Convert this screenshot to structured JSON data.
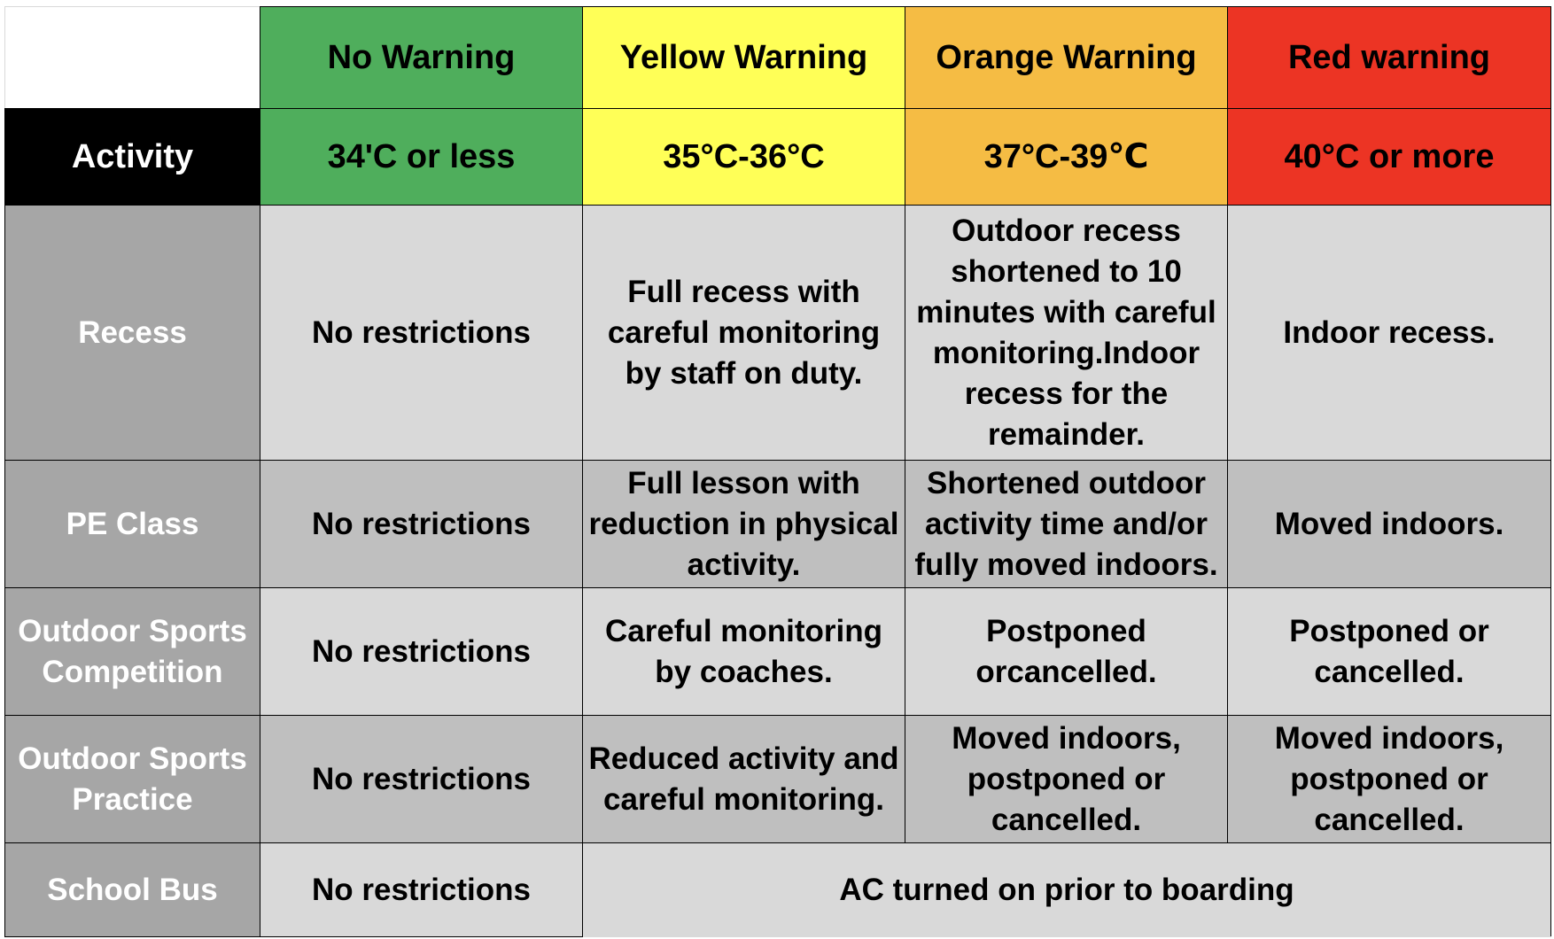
{
  "colors": {
    "no_warning": "#4fae5c",
    "yellow_warning": "#ffff57",
    "orange_warning": "#f5bc44",
    "red_warning": "#ec3424",
    "row_header": "#a6a6a6",
    "cell_light": "#d9d9d9",
    "cell_dark": "#bfbfbf",
    "activity_header": "#000000"
  },
  "header": {
    "levels": [
      {
        "label": "No Warning",
        "temp": "34'C or less",
        "color": "#4fae5c"
      },
      {
        "label": "Yellow Warning",
        "temp": "35°C-36°C",
        "color": "#ffff57"
      },
      {
        "label": "Orange Warning",
        "temp": "37°C-39℃",
        "color": "#f5bc44"
      },
      {
        "label": "Red warning",
        "temp": "40°C or more",
        "color": "#ec3424"
      }
    ],
    "activity_label": "Activity"
  },
  "rows": [
    {
      "activity": "Recess",
      "no": "No restrictions",
      "yellow": "Full recess with careful monitoring by staff on duty.",
      "orange": "Outdoor recess shortened to 10 minutes with careful monitoring.Indoor recess for the remainder.",
      "red": "Indoor recess."
    },
    {
      "activity": "PE Class",
      "no": "No restrictions",
      "yellow": "Full lesson with reduction in physical activity.",
      "orange": "Shortened outdoor activity time and/or fully moved indoors.",
      "red": "Moved indoors."
    },
    {
      "activity": "Outdoor Sports Competition",
      "no": "No restrictions",
      "yellow": "Careful monitoring by coaches.",
      "orange": "Postponed orcancelled.",
      "red": "Postponed or cancelled."
    },
    {
      "activity": "Outdoor Sports Practice",
      "no": "No restrictions",
      "yellow": "Reduced activity and careful monitoring.",
      "orange": "Moved indoors, postponed or cancelled.",
      "red": "Moved indoors, postponed or cancelled."
    }
  ],
  "school_bus": {
    "activity": "School Bus",
    "no": "No restrictions",
    "other": "AC turned on prior to boarding"
  }
}
